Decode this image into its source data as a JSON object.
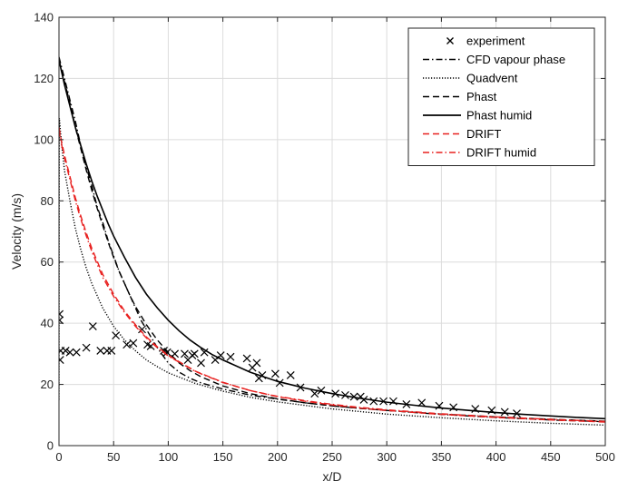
{
  "chart_data": {
    "type": "line",
    "title": "",
    "xlabel": "x/D",
    "ylabel": "Velocity (m/s)",
    "xlim": [
      0,
      500
    ],
    "ylim": [
      0,
      140
    ],
    "xticks": [
      0,
      50,
      100,
      150,
      200,
      250,
      300,
      350,
      400,
      450,
      500
    ],
    "yticks": [
      0,
      20,
      40,
      60,
      80,
      100,
      120,
      140
    ],
    "grid": true,
    "legend_position": "top-right",
    "series": [
      {
        "name": "experiment",
        "type": "scatter",
        "marker": "x",
        "color": "#000000",
        "points": [
          [
            0.5,
            43
          ],
          [
            0.5,
            41
          ],
          [
            1,
            28
          ],
          [
            1.5,
            31
          ],
          [
            6,
            31
          ],
          [
            10,
            30.5
          ],
          [
            16,
            30.5
          ],
          [
            25,
            32
          ],
          [
            31,
            39
          ],
          [
            38,
            31
          ],
          [
            44,
            31
          ],
          [
            48,
            31
          ],
          [
            52,
            36
          ],
          [
            62,
            33
          ],
          [
            68,
            33.5
          ],
          [
            76,
            38
          ],
          [
            81,
            33
          ],
          [
            84,
            32.5
          ],
          [
            96,
            31
          ],
          [
            99,
            30.5
          ],
          [
            106,
            30
          ],
          [
            115,
            30
          ],
          [
            118,
            28
          ],
          [
            122,
            29.5
          ],
          [
            124,
            30
          ],
          [
            130,
            27
          ],
          [
            133,
            30.5
          ],
          [
            143,
            28
          ],
          [
            148,
            29.5
          ],
          [
            157,
            29
          ],
          [
            172,
            28.5
          ],
          [
            177,
            25.5
          ],
          [
            181,
            27
          ],
          [
            183,
            22
          ],
          [
            186,
            23
          ],
          [
            198,
            23.5
          ],
          [
            202,
            20.5
          ],
          [
            212,
            23
          ],
          [
            221,
            19
          ],
          [
            234,
            17
          ],
          [
            240,
            18
          ],
          [
            253,
            17
          ],
          [
            262,
            16.5
          ],
          [
            270,
            16
          ],
          [
            276,
            16
          ],
          [
            279,
            15
          ],
          [
            288,
            14.5
          ],
          [
            297,
            14.5
          ],
          [
            306,
            14.5
          ],
          [
            318,
            13.5
          ],
          [
            332,
            14
          ],
          [
            348,
            13
          ],
          [
            361,
            12.5
          ],
          [
            381,
            12
          ],
          [
            396,
            11.5
          ],
          [
            408,
            11
          ],
          [
            419,
            10.5
          ]
        ]
      },
      {
        "name": "CFD vapour phase",
        "type": "line",
        "dash": "dashdot",
        "color": "#000000",
        "points": [
          [
            0,
            127
          ],
          [
            5,
            120
          ],
          [
            10,
            113
          ],
          [
            15,
            106
          ],
          [
            20,
            98
          ],
          [
            25,
            91
          ],
          [
            30,
            85
          ],
          [
            35,
            78
          ],
          [
            40,
            73
          ],
          [
            45,
            67
          ],
          [
            50,
            62
          ],
          [
            55,
            57
          ],
          [
            60,
            53
          ],
          [
            65,
            49
          ],
          [
            70,
            45
          ],
          [
            75,
            41
          ],
          [
            80,
            38
          ],
          [
            85,
            35
          ],
          [
            90,
            32
          ],
          [
            95,
            29.5
          ],
          [
            100,
            27
          ],
          [
            110,
            24
          ],
          [
            120,
            22
          ],
          [
            130,
            20.5
          ],
          [
            150,
            18.5
          ],
          [
            175,
            16.5
          ],
          [
            200,
            15.2
          ],
          [
            225,
            14
          ],
          [
            250,
            13
          ],
          [
            275,
            12.2
          ],
          [
            300,
            11.5
          ],
          [
            350,
            10.2
          ],
          [
            400,
            9.2
          ],
          [
            450,
            8.4
          ],
          [
            500,
            7.8
          ]
        ]
      },
      {
        "name": "Quadvent",
        "type": "line",
        "dash": "dotted",
        "color": "#000000",
        "points": [
          [
            0,
            15
          ],
          [
            0.3,
            107
          ],
          [
            2,
            100
          ],
          [
            5,
            90
          ],
          [
            10,
            80
          ],
          [
            15,
            71
          ],
          [
            20,
            64
          ],
          [
            25,
            58
          ],
          [
            30,
            53
          ],
          [
            40,
            45
          ],
          [
            50,
            39
          ],
          [
            60,
            34.5
          ],
          [
            70,
            31
          ],
          [
            80,
            28
          ],
          [
            90,
            25.8
          ],
          [
            100,
            23.8
          ],
          [
            125,
            20.3
          ],
          [
            150,
            17.8
          ],
          [
            175,
            15.8
          ],
          [
            200,
            14.3
          ],
          [
            250,
            12
          ],
          [
            300,
            10.3
          ],
          [
            350,
            9.1
          ],
          [
            400,
            8.1
          ],
          [
            450,
            7.3
          ],
          [
            500,
            6.7
          ]
        ]
      },
      {
        "name": "Phast",
        "type": "line",
        "dash": "dashed",
        "color": "#000000",
        "points": [
          [
            0,
            126
          ],
          [
            5,
            119
          ],
          [
            10,
            112
          ],
          [
            15,
            104
          ],
          [
            20,
            97
          ],
          [
            25,
            90
          ],
          [
            30,
            83.5
          ],
          [
            35,
            77.5
          ],
          [
            40,
            72
          ],
          [
            45,
            66.5
          ],
          [
            50,
            61.5
          ],
          [
            55,
            57
          ],
          [
            60,
            53
          ],
          [
            65,
            49
          ],
          [
            70,
            45.5
          ],
          [
            75,
            42.5
          ],
          [
            80,
            39.5
          ],
          [
            85,
            37
          ],
          [
            90,
            34.5
          ],
          [
            95,
            32.5
          ],
          [
            100,
            30.5
          ],
          [
            110,
            27
          ],
          [
            120,
            24.5
          ],
          [
            130,
            22.5
          ],
          [
            150,
            19.5
          ],
          [
            175,
            17
          ],
          [
            200,
            15.3
          ],
          [
            225,
            14
          ],
          [
            250,
            13
          ],
          [
            275,
            12.2
          ],
          [
            300,
            11.5
          ],
          [
            350,
            10.3
          ],
          [
            400,
            9.4
          ],
          [
            450,
            8.6
          ],
          [
            500,
            8.0
          ]
        ]
      },
      {
        "name": "Phast humid",
        "type": "line",
        "dash": "solid",
        "color": "#000000",
        "points": [
          [
            0,
            126
          ],
          [
            5,
            118
          ],
          [
            10,
            111
          ],
          [
            15,
            104
          ],
          [
            20,
            98
          ],
          [
            25,
            92
          ],
          [
            30,
            86.5
          ],
          [
            35,
            81.5
          ],
          [
            40,
            77
          ],
          [
            45,
            72.5
          ],
          [
            50,
            68.5
          ],
          [
            60,
            61.5
          ],
          [
            70,
            55
          ],
          [
            80,
            49.5
          ],
          [
            90,
            45
          ],
          [
            100,
            41
          ],
          [
            110,
            37.5
          ],
          [
            120,
            34.5
          ],
          [
            130,
            32
          ],
          [
            140,
            29.8
          ],
          [
            150,
            28
          ],
          [
            175,
            24
          ],
          [
            200,
            21
          ],
          [
            225,
            18.8
          ],
          [
            250,
            17
          ],
          [
            275,
            15.5
          ],
          [
            300,
            14.2
          ],
          [
            325,
            13.2
          ],
          [
            350,
            12.3
          ],
          [
            375,
            11.5
          ],
          [
            400,
            10.8
          ],
          [
            425,
            10.2
          ],
          [
            450,
            9.7
          ],
          [
            475,
            9.2
          ],
          [
            500,
            8.8
          ]
        ]
      },
      {
        "name": "DRIFT",
        "type": "line",
        "dash": "dashed",
        "color": "#e8201f",
        "points": [
          [
            0,
            104
          ],
          [
            2,
            100
          ],
          [
            5,
            95
          ],
          [
            10,
            88
          ],
          [
            15,
            81
          ],
          [
            20,
            75
          ],
          [
            25,
            69.5
          ],
          [
            30,
            64.5
          ],
          [
            40,
            56
          ],
          [
            50,
            49.5
          ],
          [
            60,
            44
          ],
          [
            70,
            39.5
          ],
          [
            80,
            35.5
          ],
          [
            90,
            32.3
          ],
          [
            100,
            29.5
          ],
          [
            125,
            24.3
          ],
          [
            150,
            20.7
          ],
          [
            175,
            18
          ],
          [
            200,
            16
          ],
          [
            225,
            14.5
          ],
          [
            250,
            13.3
          ],
          [
            275,
            12.3
          ],
          [
            300,
            11.5
          ],
          [
            350,
            10.2
          ],
          [
            400,
            9.2
          ],
          [
            450,
            8.4
          ],
          [
            500,
            7.7
          ]
        ]
      },
      {
        "name": "DRIFT humid",
        "type": "line",
        "dash": "dashdot",
        "color": "#e8201f",
        "points": [
          [
            0,
            103
          ],
          [
            2,
            99
          ],
          [
            5,
            94
          ],
          [
            10,
            87
          ],
          [
            15,
            80
          ],
          [
            20,
            74
          ],
          [
            25,
            68.5
          ],
          [
            30,
            63.5
          ],
          [
            40,
            55
          ],
          [
            50,
            48.8
          ],
          [
            60,
            43.5
          ],
          [
            70,
            39
          ],
          [
            80,
            35.2
          ],
          [
            90,
            32
          ],
          [
            100,
            29.3
          ],
          [
            125,
            24.2
          ],
          [
            150,
            20.6
          ],
          [
            175,
            18
          ],
          [
            200,
            16.1
          ],
          [
            225,
            14.7
          ],
          [
            250,
            13.5
          ],
          [
            275,
            12.5
          ],
          [
            300,
            11.7
          ],
          [
            350,
            10.4
          ],
          [
            400,
            9.4
          ],
          [
            450,
            8.6
          ],
          [
            500,
            7.9
          ]
        ]
      }
    ]
  }
}
